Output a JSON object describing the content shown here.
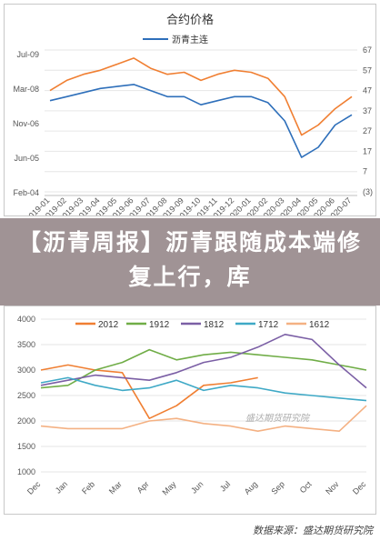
{
  "headline": "【沥青周报】沥青跟随成本端修复上行，库",
  "source": "数据来源：盛达期货研究院",
  "watermark": "盛达期货研究院",
  "chart_data": [
    {
      "type": "line",
      "title": "合约价格",
      "x": [
        "2019-01",
        "2019-02",
        "2019-03",
        "2019-04",
        "2019-05",
        "2019-06",
        "2019-07",
        "2019-08",
        "2019-09",
        "2019-10",
        "2019-11",
        "2019-12",
        "2020-01",
        "2020-02",
        "2020-03",
        "2020-04",
        "2020-05",
        "2020-06",
        "2020-07"
      ],
      "left_ticks": [
        "Jul-09",
        "Mar-08",
        "Nov-06",
        "Jun-05",
        "Feb-04"
      ],
      "right_ticks": [
        "67",
        "57",
        "47",
        "37",
        "27",
        "17",
        "7",
        "(3)"
      ],
      "right_tick_negative": "(3)",
      "right_ylim": [
        -3,
        67
      ],
      "series": [
        {
          "name": "沥青主连",
          "color": "#2e6fba",
          "axis": "left",
          "values": [
            42,
            44,
            46,
            48,
            49,
            50,
            47,
            44,
            44,
            40,
            42,
            44,
            44,
            41,
            32,
            14,
            19,
            30,
            35
          ]
        },
        {
          "axis": "right",
          "color": "#f07f32",
          "values": [
            47,
            52,
            55,
            57,
            60,
            63,
            58,
            55,
            56,
            52,
            55,
            57,
            56,
            53,
            44,
            25,
            30,
            38,
            44
          ]
        }
      ]
    },
    {
      "type": "line",
      "x": [
        "Dec",
        "Jan",
        "Feb",
        "Mar",
        "Apr",
        "May",
        "Jun",
        "Jul",
        "Aug",
        "Sep",
        "Oct",
        "Nov",
        "Dec"
      ],
      "y_ticks": [
        "4000",
        "3500",
        "3000",
        "2500",
        "2000",
        "1500",
        "1000"
      ],
      "ylim": [
        1000,
        4000
      ],
      "series": [
        {
          "name": "2012",
          "color": "#f07f32",
          "values": [
            3000,
            3100,
            3000,
            2950,
            2050,
            2300,
            2700,
            2750,
            2850,
            null,
            null,
            null,
            null
          ]
        },
        {
          "name": "1912",
          "color": "#70ad47",
          "values": [
            2650,
            2700,
            3000,
            3150,
            3400,
            3200,
            3300,
            3350,
            3300,
            3250,
            3200,
            3100,
            3000
          ]
        },
        {
          "name": "1812",
          "color": "#7b5fa5",
          "values": [
            2700,
            2800,
            2900,
            2850,
            2800,
            2950,
            3150,
            3250,
            3450,
            3700,
            3600,
            3100,
            2650
          ]
        },
        {
          "name": "1712",
          "color": "#3fa9c6",
          "values": [
            2750,
            2850,
            2700,
            2600,
            2650,
            2800,
            2600,
            2700,
            2650,
            2550,
            2500,
            2450,
            2400
          ]
        },
        {
          "name": "1612",
          "color": "#f4b183",
          "values": [
            1900,
            1850,
            1850,
            1850,
            2000,
            2050,
            1950,
            1900,
            1800,
            1900,
            1850,
            1800,
            2300
          ]
        }
      ]
    }
  ]
}
